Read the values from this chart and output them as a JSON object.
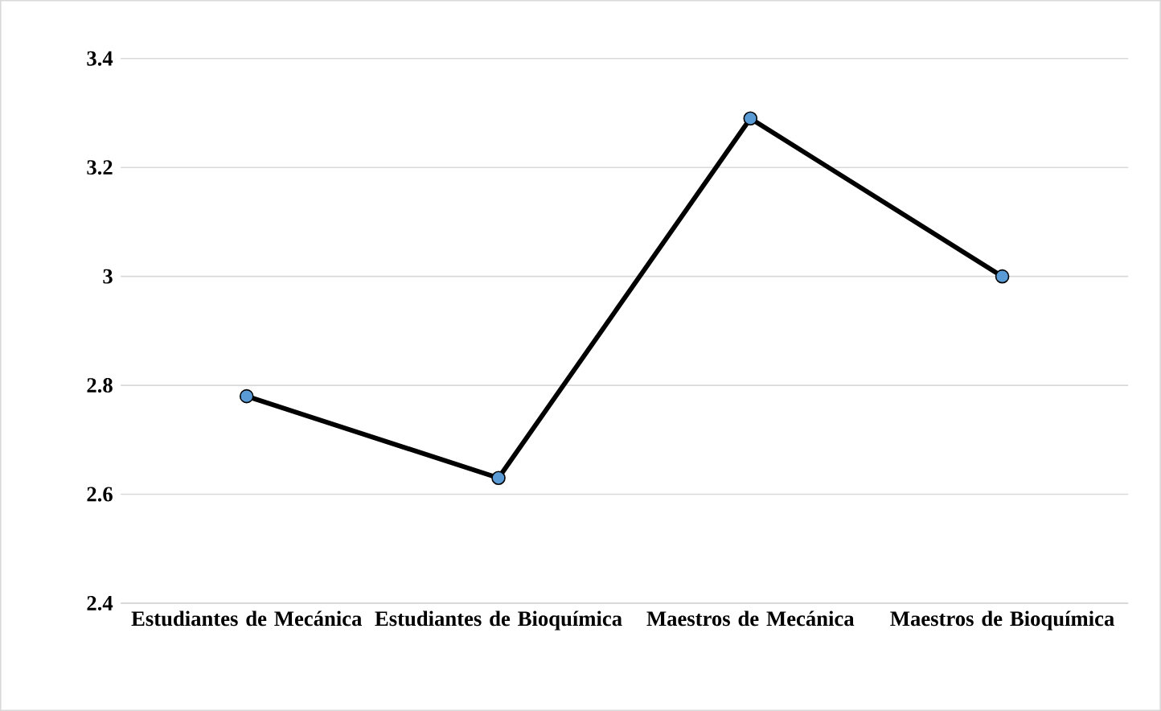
{
  "chart_data": {
    "type": "line",
    "categories": [
      "Estudiantes de Mecánica",
      "Estudiantes de Bioquímica",
      "Maestros de Mecánica",
      "Maestros de Bioquímica"
    ],
    "series": [
      {
        "color": "#000000",
        "values": [
          2.78,
          2.63,
          3.29,
          3.0
        ]
      }
    ],
    "ylim": [
      2.4,
      3.4
    ],
    "yticks": [
      2.4,
      2.6,
      2.8,
      3,
      3.2,
      3.4
    ],
    "grid": "y",
    "marker": "circle",
    "line_style": "solid"
  }
}
